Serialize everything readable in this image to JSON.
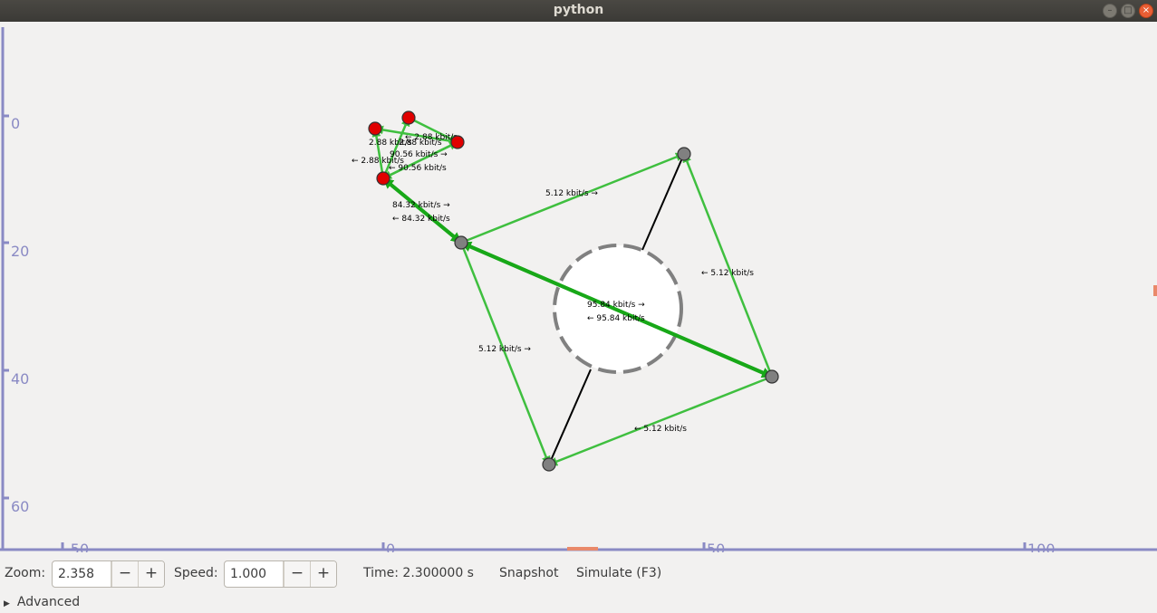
{
  "window": {
    "title": "python"
  },
  "colors": {
    "axis": "#8a8ac4",
    "link": "#3fbf3f",
    "link_thick": "#18a818",
    "node_red": "#e00000",
    "node_gray": "#808080"
  },
  "axes": {
    "y_ticks": [
      "0",
      "20",
      "40",
      "60"
    ],
    "x_ticks": [
      "-50",
      "0",
      "50",
      "100"
    ]
  },
  "link_labels": [
    "2.88 kbit/s",
    "← 2.88 kbit/s",
    "2.88 kbit/s",
    "90.56 kbit/s →",
    "← 2.88 kbit/s",
    "← 90.56 kbit/s",
    "84.32 kbit/s →",
    "← 84.32 kbit/s",
    "5.12 kbit/s →",
    "← 5.12 kbit/s",
    "95.84 kbit/s →",
    "← 95.84 kbit/s",
    "5.12 kbit/s →",
    "← 5.12 kbit/s"
  ],
  "toolbar": {
    "zoom_label": "Zoom:",
    "zoom_value": "2.358",
    "speed_label": "Speed:",
    "speed_value": "1.000",
    "minus": "−",
    "plus": "+",
    "time_text": "Time: 2.300000 s",
    "snapshot_label": "Snapshot",
    "simulate_label": "Simulate (F3)"
  },
  "advanced_label": "Advanced"
}
